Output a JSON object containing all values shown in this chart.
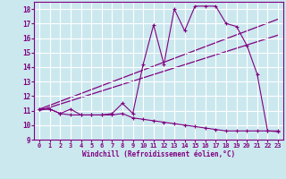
{
  "xlabel": "Windchill (Refroidissement éolien,°C)",
  "bg_color": "#cce8ef",
  "grid_color": "#ffffff",
  "line_color": "#800080",
  "spine_color": "#800080",
  "xlim": [
    -0.5,
    23.5
  ],
  "ylim": [
    9,
    18.5
  ],
  "yticks": [
    9,
    10,
    11,
    12,
    13,
    14,
    15,
    16,
    17,
    18
  ],
  "xticks": [
    0,
    1,
    2,
    3,
    4,
    5,
    6,
    7,
    8,
    9,
    10,
    11,
    12,
    13,
    14,
    15,
    16,
    17,
    18,
    19,
    20,
    21,
    22,
    23
  ],
  "main_line": {
    "x": [
      0,
      1,
      2,
      3,
      4,
      5,
      6,
      7,
      8,
      9,
      10,
      11,
      12,
      13,
      14,
      15,
      16,
      17,
      18,
      19,
      20,
      21,
      22,
      23
    ],
    "y": [
      11.1,
      11.1,
      10.8,
      11.1,
      10.7,
      10.7,
      10.7,
      10.8,
      11.5,
      10.8,
      14.2,
      16.9,
      14.2,
      18.0,
      16.5,
      18.2,
      18.2,
      18.2,
      17.0,
      16.8,
      15.5,
      13.5,
      9.6,
      9.6
    ]
  },
  "lower_line": {
    "x": [
      0,
      1,
      2,
      3,
      4,
      5,
      6,
      7,
      8,
      9,
      10,
      11,
      12,
      13,
      14,
      15,
      16,
      17,
      18,
      19,
      20,
      21,
      22,
      23
    ],
    "y": [
      11.1,
      11.1,
      10.8,
      10.7,
      10.7,
      10.7,
      10.7,
      10.7,
      10.8,
      10.5,
      10.4,
      10.3,
      10.2,
      10.1,
      10.0,
      9.9,
      9.8,
      9.7,
      9.6,
      9.6,
      9.6,
      9.6,
      9.6,
      9.55
    ]
  },
  "trend_line1": {
    "x": [
      0,
      23
    ],
    "y": [
      11.1,
      17.3
    ]
  },
  "trend_line2": {
    "x": [
      0,
      23
    ],
    "y": [
      11.0,
      16.2
    ]
  }
}
